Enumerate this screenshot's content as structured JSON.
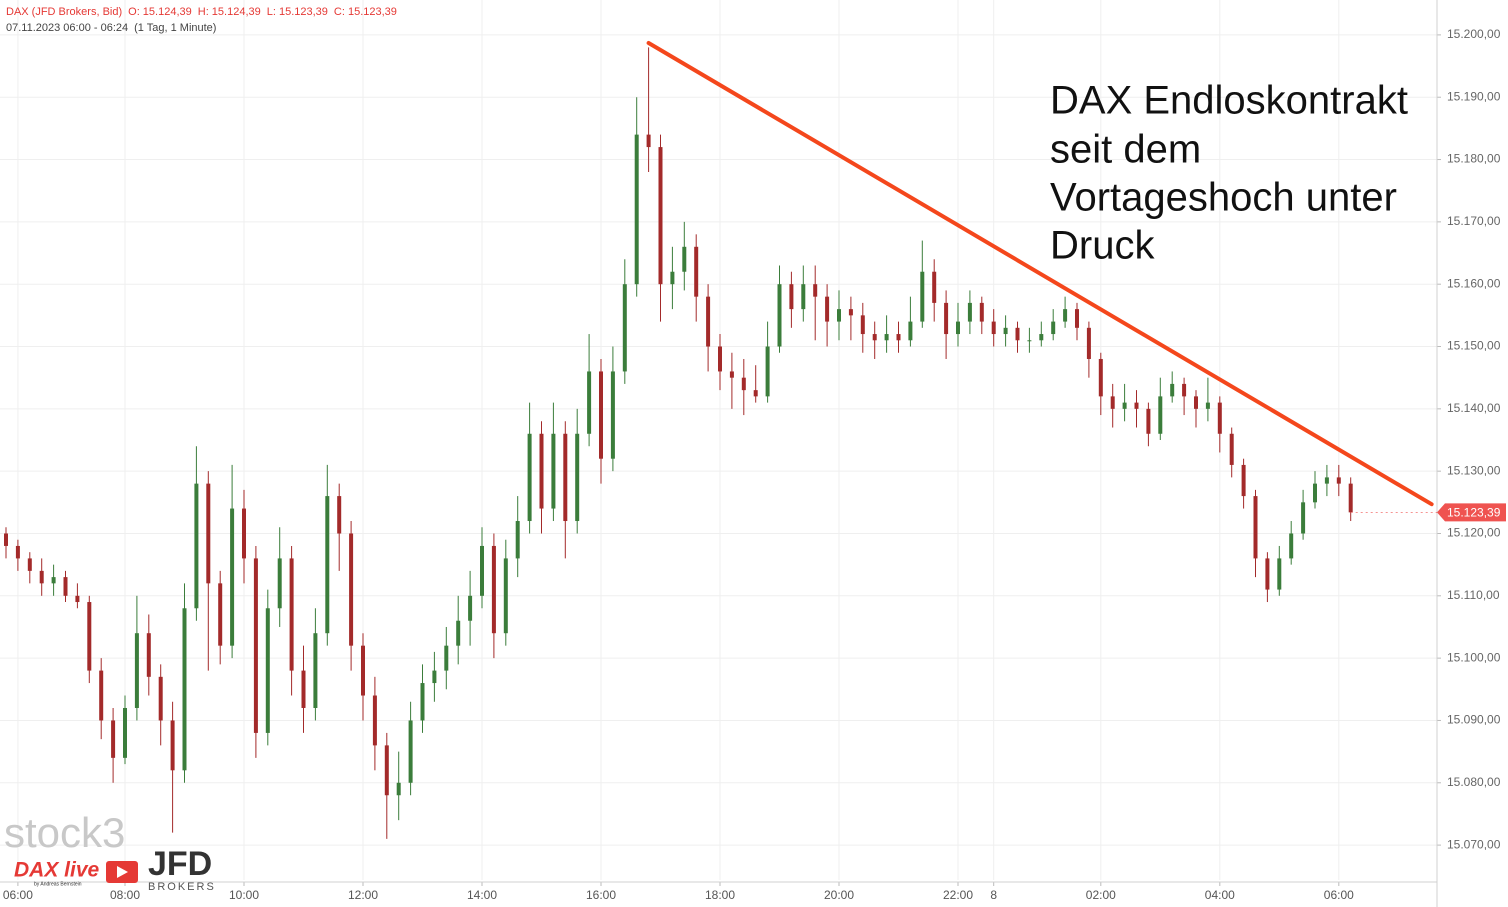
{
  "chart_data": {
    "type": "candlestick",
    "header": {
      "symbol": "DAX (JFD Brokers, Bid)",
      "open": "O: 15.124,39",
      "high": "H: 15.124,39",
      "low": "L: 15.123,39",
      "close": "C: 15.123,39",
      "range": "07.11.2023 06:00 - 06:24",
      "interval": "(1 Tag, 1 Minute)"
    },
    "annotation": [
      "DAX Endloskontrakt",
      "seit dem",
      "Vortageshoch unter",
      "Druck"
    ],
    "up_color": "#3b7d3b",
    "down_color": "#a32a2a",
    "grid": true,
    "categories": [
      null,
      "06:00",
      null,
      null,
      null,
      null,
      null,
      null,
      null,
      null,
      "08:00",
      null,
      null,
      null,
      null,
      null,
      null,
      null,
      null,
      null,
      "10:00",
      null,
      null,
      null,
      null,
      null,
      null,
      null,
      null,
      null,
      "12:00",
      null,
      null,
      null,
      null,
      null,
      null,
      null,
      null,
      null,
      "14:00",
      null,
      null,
      null,
      null,
      null,
      null,
      null,
      null,
      null,
      "16:00",
      null,
      null,
      null,
      null,
      null,
      null,
      null,
      null,
      null,
      "18:00",
      null,
      null,
      null,
      null,
      null,
      null,
      null,
      null,
      null,
      "20:00",
      null,
      null,
      null,
      null,
      null,
      null,
      null,
      null,
      null,
      "22:00",
      null,
      null,
      "8",
      null,
      null,
      null,
      null,
      null,
      null,
      null,
      null,
      "02:00",
      null,
      null,
      null,
      null,
      null,
      null,
      null,
      null,
      null,
      "04:00",
      null,
      null,
      null,
      null,
      null,
      null,
      null,
      null,
      null,
      "06:00",
      null
    ],
    "open": [
      15120,
      15118,
      15116,
      15114,
      15112,
      15113,
      15110,
      15109,
      15098,
      15090,
      15084,
      15092,
      15104,
      15097,
      15090,
      15082,
      15108,
      15128,
      15112,
      15102,
      15124,
      15116,
      15088,
      15108,
      15116,
      15098,
      15092,
      15104,
      15126,
      15120,
      15102,
      15094,
      15086,
      15078,
      15080,
      15090,
      15096,
      15098,
      15102,
      15106,
      15110,
      15118,
      15104,
      15116,
      15122,
      15136,
      15124,
      15136,
      15122,
      15136,
      15146,
      15132,
      15146,
      15160,
      15184,
      15182,
      15160,
      15162,
      15166,
      15158,
      15150,
      15146,
      15145,
      15143,
      15142,
      15150,
      15160,
      15156,
      15160,
      15158,
      15154,
      15156,
      15155,
      15152,
      15151,
      15152,
      15151,
      15154,
      15162,
      15157,
      15152,
      15154,
      15157,
      15154,
      15152,
      15153,
      15151,
      15151,
      15152,
      15154,
      15156,
      15153,
      15148,
      15142,
      15140,
      15141,
      15140,
      15136,
      15142,
      15144,
      15142,
      15140,
      15141,
      15136,
      15131,
      15126,
      15116,
      15111,
      15116,
      15120,
      15125,
      15128,
      15129,
      15128
    ],
    "high": [
      15121,
      15119,
      15117,
      15116,
      15115,
      15114,
      15112,
      15110,
      15100,
      15092,
      15094,
      15110,
      15107,
      15099,
      15093,
      15112,
      15134,
      15130,
      15114,
      15131,
      15127,
      15118,
      15111,
      15121,
      15118,
      15102,
      15108,
      15131,
      15128,
      15122,
      15104,
      15097,
      15088,
      15085,
      15093,
      15099,
      15101,
      15105,
      15110,
      15114,
      15121,
      15120,
      15119,
      15126,
      15141,
      15138,
      15141,
      15138,
      15140,
      15152,
      15148,
      15150,
      15164,
      15190,
      15198,
      15184,
      15166,
      15170,
      15168,
      15160,
      15152,
      15149,
      15148,
      15147,
      15154,
      15163,
      15162,
      15163,
      15163,
      15160,
      15159,
      15158,
      15157,
      15154,
      15155,
      15154,
      15158,
      15167,
      15164,
      15159,
      15157,
      15159,
      15158,
      15156,
      15155,
      15154,
      15153,
      15154,
      15156,
      15158,
      15157,
      15154,
      15149,
      15144,
      15144,
      15143,
      15141,
      15145,
      15146,
      15145,
      15143,
      15145,
      15142,
      15137,
      15132,
      15127,
      15117,
      15118,
      15122,
      15127,
      15130,
      15131,
      15131,
      15129
    ],
    "low": [
      15116,
      15114,
      15112,
      15110,
      15110,
      15109,
      15108,
      15096,
      15087,
      15080,
      15083,
      15090,
      15094,
      15086,
      15072,
      15080,
      15106,
      15098,
      15099,
      15100,
      15112,
      15084,
      15086,
      15105,
      15094,
      15088,
      15090,
      15102,
      15114,
      15098,
      15090,
      15082,
      15071,
      15074,
      15078,
      15088,
      15093,
      15095,
      15099,
      15102,
      15108,
      15100,
      15102,
      15113,
      15120,
      15120,
      15122,
      15116,
      15120,
      15134,
      15128,
      15130,
      15144,
      15158,
      15178,
      15154,
      15156,
      15159,
      15154,
      15146,
      15143,
      15140,
      15139,
      15141,
      15141,
      15149,
      15153,
      15154,
      15151,
      15150,
      15151,
      15151,
      15149,
      15148,
      15149,
      15149,
      15150,
      15153,
      15154,
      15148,
      15150,
      15152,
      15152,
      15150,
      15150,
      15149,
      15149,
      15150,
      15151,
      15153,
      15151,
      15145,
      15139,
      15137,
      15138,
      15137,
      15134,
      15135,
      15141,
      15139,
      15137,
      15138,
      15133,
      15129,
      15124,
      15113,
      15109,
      15110,
      15115,
      15119,
      15124,
      15126,
      15126,
      15122
    ],
    "close": [
      15118,
      15116,
      15114,
      15112,
      15113,
      15110,
      15109,
      15098,
      15090,
      15084,
      15092,
      15104,
      15097,
      15090,
      15082,
      15108,
      15128,
      15112,
      15102,
      15124,
      15116,
      15088,
      15108,
      15116,
      15098,
      15092,
      15104,
      15126,
      15120,
      15102,
      15094,
      15086,
      15078,
      15080,
      15090,
      15096,
      15098,
      15102,
      15106,
      15110,
      15118,
      15104,
      15116,
      15122,
      15136,
      15124,
      15136,
      15122,
      15136,
      15146,
      15132,
      15146,
      15160,
      15184,
      15182,
      15160,
      15162,
      15166,
      15158,
      15150,
      15146,
      15145,
      15143,
      15142,
      15150,
      15160,
      15156,
      15160,
      15158,
      15154,
      15156,
      15155,
      15152,
      15151,
      15152,
      15151,
      15154,
      15162,
      15157,
      15152,
      15154,
      15157,
      15154,
      15152,
      15153,
      15151,
      15151,
      15152,
      15154,
      15156,
      15153,
      15148,
      15142,
      15140,
      15141,
      15140,
      15136,
      15142,
      15144,
      15142,
      15140,
      15141,
      15136,
      15131,
      15126,
      15116,
      15111,
      15116,
      15120,
      15125,
      15128,
      15129,
      15128,
      15123.39
    ],
    "last_price_label": "15.123,39",
    "last_price_color": "#ef5350",
    "trendline": {
      "color": "#f4471c",
      "x": [
        54,
        119.8
      ],
      "y": [
        15198.7,
        15124.7
      ]
    },
    "ylim": [
      15064.4,
      15205.6
    ],
    "yticks": [
      {
        "value": 15070,
        "label": "15.070,00"
      },
      {
        "value": 15080,
        "label": "15.080,00"
      },
      {
        "value": 15090,
        "label": "15.090,00"
      },
      {
        "value": 15100,
        "label": "15.100,00"
      },
      {
        "value": 15110,
        "label": "15.110,00"
      },
      {
        "value": 15120,
        "label": "15.120,00"
      },
      {
        "value": 15130,
        "label": "15.130,00"
      },
      {
        "value": 15140,
        "label": "15.140,00"
      },
      {
        "value": 15150,
        "label": "15.150,00"
      },
      {
        "value": 15160,
        "label": "15.160,00"
      },
      {
        "value": 15170,
        "label": "15.170,00"
      },
      {
        "value": 15180,
        "label": "15.180,00"
      },
      {
        "value": 15190,
        "label": "15.190,00"
      },
      {
        "value": 15200,
        "label": "15.200,00"
      }
    ]
  },
  "branding": {
    "watermark": "stock3",
    "dax_live": "DAX live",
    "author": "by Andreas Bernstein",
    "broker": "JFD",
    "broker_sub": "BROKERS"
  }
}
